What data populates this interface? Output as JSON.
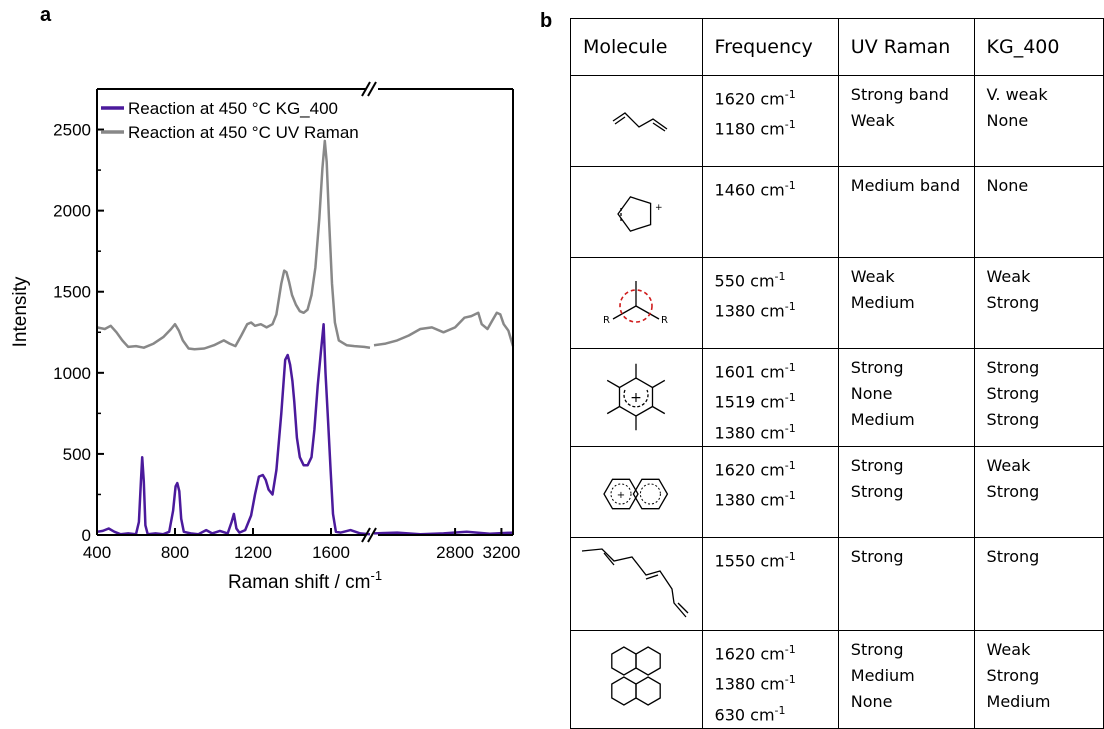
{
  "panel_a_label": "a",
  "panel_b_label": "b",
  "chart_data": {
    "type": "line",
    "xlabel": "Raman shift / cm-1",
    "xlabel_main": "Raman shift / cm",
    "xlabel_sup": "-1",
    "ylabel": "Intensity",
    "x_segments": [
      [
        400,
        1800
      ],
      [
        2100,
        3300
      ]
    ],
    "ylim": [
      0,
      2750
    ],
    "xticks": [
      400,
      800,
      1200,
      1600,
      2800,
      3200
    ],
    "yticks": [
      0,
      500,
      1000,
      1500,
      2000,
      2500
    ],
    "legend_position": "top-left",
    "grid": false,
    "series": [
      {
        "name": "Reaction at 450 °C KG_400",
        "color": "#4b1a9c",
        "points": [
          [
            400,
            20
          ],
          [
            430,
            25
          ],
          [
            460,
            40
          ],
          [
            490,
            20
          ],
          [
            520,
            5
          ],
          [
            560,
            10
          ],
          [
            600,
            5
          ],
          [
            615,
            80
          ],
          [
            625,
            330
          ],
          [
            632,
            480
          ],
          [
            640,
            330
          ],
          [
            648,
            60
          ],
          [
            660,
            5
          ],
          [
            700,
            10
          ],
          [
            740,
            5
          ],
          [
            770,
            20
          ],
          [
            790,
            150
          ],
          [
            803,
            300
          ],
          [
            812,
            320
          ],
          [
            822,
            270
          ],
          [
            832,
            100
          ],
          [
            845,
            20
          ],
          [
            880,
            10
          ],
          [
            920,
            5
          ],
          [
            960,
            30
          ],
          [
            990,
            10
          ],
          [
            1030,
            25
          ],
          [
            1070,
            10
          ],
          [
            1090,
            80
          ],
          [
            1102,
            130
          ],
          [
            1115,
            40
          ],
          [
            1130,
            15
          ],
          [
            1160,
            30
          ],
          [
            1190,
            120
          ],
          [
            1210,
            250
          ],
          [
            1230,
            360
          ],
          [
            1250,
            370
          ],
          [
            1265,
            340
          ],
          [
            1280,
            280
          ],
          [
            1300,
            250
          ],
          [
            1320,
            400
          ],
          [
            1345,
            750
          ],
          [
            1365,
            1080
          ],
          [
            1378,
            1110
          ],
          [
            1390,
            1050
          ],
          [
            1402,
            950
          ],
          [
            1412,
            820
          ],
          [
            1425,
            600
          ],
          [
            1440,
            480
          ],
          [
            1460,
            430
          ],
          [
            1480,
            430
          ],
          [
            1500,
            480
          ],
          [
            1515,
            650
          ],
          [
            1532,
            920
          ],
          [
            1548,
            1130
          ],
          [
            1562,
            1300
          ],
          [
            1572,
            1000
          ],
          [
            1585,
            700
          ],
          [
            1598,
            400
          ],
          [
            1610,
            130
          ],
          [
            1625,
            20
          ],
          [
            1650,
            15
          ],
          [
            1700,
            30
          ],
          [
            1750,
            10
          ],
          [
            1800,
            5
          ],
          [
            2100,
            10
          ],
          [
            2300,
            15
          ],
          [
            2500,
            5
          ],
          [
            2700,
            10
          ],
          [
            2900,
            20
          ],
          [
            3100,
            8
          ],
          [
            3300,
            15
          ]
        ]
      },
      {
        "name": "Reaction at 450 °C UV Raman",
        "color": "#888888",
        "points": [
          [
            400,
            1280
          ],
          [
            440,
            1270
          ],
          [
            470,
            1290
          ],
          [
            500,
            1250
          ],
          [
            530,
            1200
          ],
          [
            560,
            1160
          ],
          [
            600,
            1165
          ],
          [
            640,
            1155
          ],
          [
            690,
            1180
          ],
          [
            740,
            1220
          ],
          [
            780,
            1270
          ],
          [
            800,
            1300
          ],
          [
            820,
            1260
          ],
          [
            840,
            1200
          ],
          [
            870,
            1150
          ],
          [
            900,
            1145
          ],
          [
            950,
            1150
          ],
          [
            1000,
            1170
          ],
          [
            1050,
            1200
          ],
          [
            1080,
            1180
          ],
          [
            1110,
            1165
          ],
          [
            1140,
            1230
          ],
          [
            1170,
            1300
          ],
          [
            1190,
            1310
          ],
          [
            1210,
            1290
          ],
          [
            1240,
            1300
          ],
          [
            1270,
            1280
          ],
          [
            1300,
            1300
          ],
          [
            1320,
            1360
          ],
          [
            1345,
            1550
          ],
          [
            1360,
            1630
          ],
          [
            1372,
            1620
          ],
          [
            1385,
            1560
          ],
          [
            1400,
            1480
          ],
          [
            1420,
            1420
          ],
          [
            1440,
            1380
          ],
          [
            1460,
            1370
          ],
          [
            1480,
            1390
          ],
          [
            1500,
            1480
          ],
          [
            1520,
            1650
          ],
          [
            1540,
            1950
          ],
          [
            1556,
            2260
          ],
          [
            1568,
            2430
          ],
          [
            1578,
            2300
          ],
          [
            1590,
            1950
          ],
          [
            1605,
            1550
          ],
          [
            1620,
            1310
          ],
          [
            1640,
            1200
          ],
          [
            1680,
            1170
          ],
          [
            1720,
            1165
          ],
          [
            1770,
            1160
          ],
          [
            1800,
            1155
          ],
          [
            2100,
            1170
          ],
          [
            2200,
            1180
          ],
          [
            2300,
            1200
          ],
          [
            2400,
            1230
          ],
          [
            2500,
            1270
          ],
          [
            2600,
            1280
          ],
          [
            2700,
            1250
          ],
          [
            2800,
            1280
          ],
          [
            2880,
            1340
          ],
          [
            2940,
            1350
          ],
          [
            3000,
            1370
          ],
          [
            3030,
            1300
          ],
          [
            3080,
            1270
          ],
          [
            3120,
            1320
          ],
          [
            3160,
            1370
          ],
          [
            3190,
            1360
          ],
          [
            3220,
            1300
          ],
          [
            3260,
            1260
          ],
          [
            3300,
            1165
          ]
        ]
      }
    ]
  },
  "table": {
    "headers": [
      "Molecule",
      "Frequency",
      "UV Raman",
      "KG_400"
    ],
    "rows": [
      {
        "molecule_icon": "butadiene-icon",
        "frequency": [
          [
            "1620 cm",
            "-1"
          ],
          [
            "1180 cm",
            "-1"
          ]
        ],
        "uv_raman": [
          "Strong band",
          "Weak"
        ],
        "kg_400": [
          "V. weak",
          "None"
        ]
      },
      {
        "molecule_icon": "cyclopentenyl-cation-icon",
        "frequency": [
          [
            "1460 cm",
            "-1"
          ]
        ],
        "uv_raman": [
          "Medium band"
        ],
        "kg_400": [
          "None"
        ]
      },
      {
        "molecule_icon": "carbenium-ion-icon",
        "molecule_labels": [
          "R",
          "R"
        ],
        "frequency": [
          [
            "550 cm",
            "-1"
          ],
          [
            "1380 cm",
            "-1"
          ]
        ],
        "uv_raman": [
          "Weak",
          "Medium"
        ],
        "kg_400": [
          "Weak",
          "Strong"
        ]
      },
      {
        "molecule_icon": "methylbenzenium-ion-icon",
        "molecule_labels": [
          "+"
        ],
        "frequency": [
          [
            "1601 cm",
            "-1"
          ],
          [
            "1519 cm",
            "-1"
          ],
          [
            "1380 cm",
            "-1"
          ]
        ],
        "uv_raman": [
          "Strong",
          "None",
          "Medium"
        ],
        "kg_400": [
          "Strong",
          "Strong",
          "Strong"
        ]
      },
      {
        "molecule_icon": "naphthalene-cation-icon",
        "molecule_labels": [
          "+"
        ],
        "frequency": [
          [
            "1620 cm",
            "-1"
          ],
          [
            "1380 cm",
            "-1"
          ]
        ],
        "uv_raman": [
          "Strong",
          "Strong"
        ],
        "kg_400": [
          "Weak",
          "Strong"
        ]
      },
      {
        "molecule_icon": "polyene-icon",
        "frequency": [
          [
            "1550 cm",
            "-1"
          ]
        ],
        "uv_raman": [
          "Strong"
        ],
        "kg_400": [
          "Strong"
        ]
      },
      {
        "molecule_icon": "pyrene-icon",
        "frequency": [
          [
            "1620 cm",
            "-1"
          ],
          [
            "1380 cm",
            "-1"
          ],
          [
            "630 cm",
            "-1"
          ]
        ],
        "uv_raman": [
          "Strong",
          "Medium",
          "None"
        ],
        "kg_400": [
          "Weak",
          "Strong",
          "Medium"
        ]
      }
    ]
  }
}
